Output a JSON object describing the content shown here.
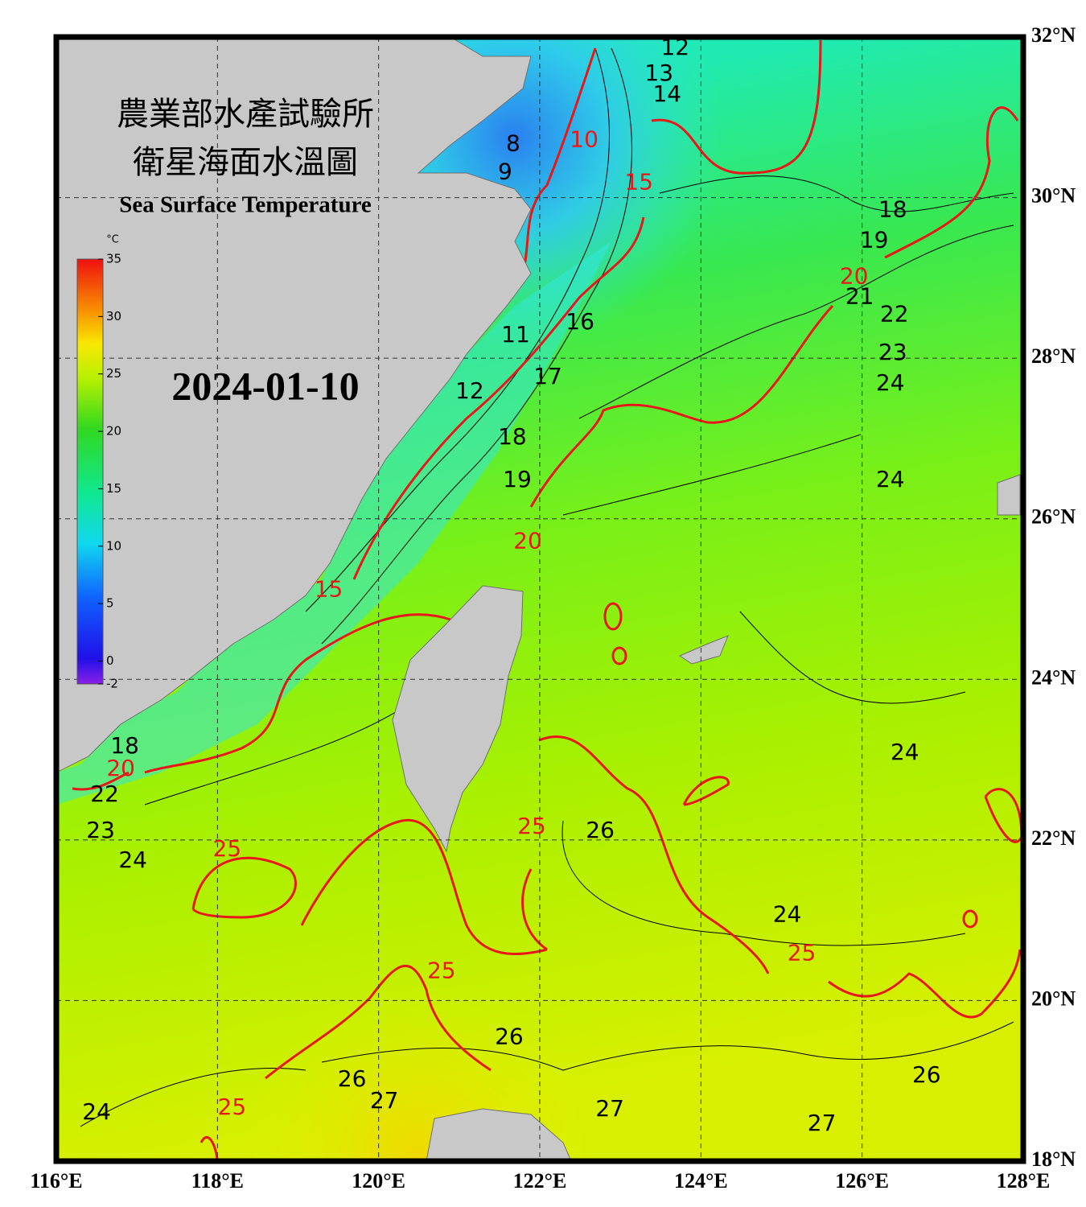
{
  "header": {
    "title_line_1": "農業部水產試驗所",
    "title_line_2": "衛星海面水溫圖",
    "subtitle": "Sea Surface Temperature",
    "date": "2024-01-10"
  },
  "map": {
    "lonlim": [
      116,
      128
    ],
    "latlim": [
      18,
      32
    ],
    "grid": true,
    "lon_ticks": [
      {
        "value": 116,
        "label": "116°E"
      },
      {
        "value": 118,
        "label": "118°E"
      },
      {
        "value": 120,
        "label": "120°E"
      },
      {
        "value": 122,
        "label": "122°E"
      },
      {
        "value": 124,
        "label": "124°E"
      },
      {
        "value": 126,
        "label": "126°E"
      },
      {
        "value": 128,
        "label": "128°E"
      }
    ],
    "lat_ticks": [
      {
        "value": 32,
        "label": "32°N"
      },
      {
        "value": 30,
        "label": "30°N"
      },
      {
        "value": 28,
        "label": "28°N"
      },
      {
        "value": 26,
        "label": "26°N"
      },
      {
        "value": 24,
        "label": "24°N"
      },
      {
        "value": 22,
        "label": "22°N"
      },
      {
        "value": 20,
        "label": "20°N"
      },
      {
        "value": 18,
        "label": "18°N"
      }
    ]
  },
  "colorbar": {
    "unit": "°C",
    "range": [
      -2,
      35
    ],
    "ticks": [
      35,
      30,
      25,
      20,
      15,
      10,
      5,
      0,
      -2
    ]
  },
  "contour_labels": [
    {
      "value": 12,
      "lon": 123.68,
      "lat": 31.86
    },
    {
      "value": 13,
      "lon": 123.48,
      "lat": 31.54
    },
    {
      "value": 14,
      "lon": 123.58,
      "lat": 31.28
    },
    {
      "value": 10,
      "lon": 122.55,
      "lat": 30.71
    },
    {
      "value": 8,
      "lon": 121.67,
      "lat": 30.66
    },
    {
      "value": 9,
      "lon": 121.57,
      "lat": 30.31
    },
    {
      "value": 15,
      "lon": 123.23,
      "lat": 30.18
    },
    {
      "value": 18,
      "lon": 126.38,
      "lat": 29.84
    },
    {
      "value": 19,
      "lon": 126.15,
      "lat": 29.46
    },
    {
      "value": 20,
      "lon": 125.9,
      "lat": 29.01
    },
    {
      "value": 21,
      "lon": 125.97,
      "lat": 28.76
    },
    {
      "value": 22,
      "lon": 126.4,
      "lat": 28.54
    },
    {
      "value": 23,
      "lon": 126.38,
      "lat": 28.06
    },
    {
      "value": 24,
      "lon": 126.35,
      "lat": 27.68
    },
    {
      "value": 11,
      "lon": 121.7,
      "lat": 28.28
    },
    {
      "value": 16,
      "lon": 122.5,
      "lat": 28.44
    },
    {
      "value": 17,
      "lon": 122.1,
      "lat": 27.76
    },
    {
      "value": 12,
      "lon": 121.13,
      "lat": 27.58
    },
    {
      "value": 18,
      "lon": 121.66,
      "lat": 27.01
    },
    {
      "value": 19,
      "lon": 121.72,
      "lat": 26.48
    },
    {
      "value": 24,
      "lon": 126.35,
      "lat": 26.48
    },
    {
      "value": 20,
      "lon": 121.85,
      "lat": 25.71
    },
    {
      "value": 15,
      "lon": 119.38,
      "lat": 25.11
    },
    {
      "value": 24,
      "lon": 126.53,
      "lat": 23.08
    },
    {
      "value": 18,
      "lon": 116.85,
      "lat": 23.16
    },
    {
      "value": 20,
      "lon": 116.8,
      "lat": 22.88
    },
    {
      "value": 22,
      "lon": 116.6,
      "lat": 22.56
    },
    {
      "value": 23,
      "lon": 116.55,
      "lat": 22.11
    },
    {
      "value": 24,
      "lon": 116.95,
      "lat": 21.74
    },
    {
      "value": 25,
      "lon": 118.12,
      "lat": 21.88
    },
    {
      "value": 25,
      "lon": 121.9,
      "lat": 22.16
    },
    {
      "value": 26,
      "lon": 122.75,
      "lat": 22.11
    },
    {
      "value": 24,
      "lon": 125.07,
      "lat": 21.06
    },
    {
      "value": 25,
      "lon": 125.25,
      "lat": 20.58
    },
    {
      "value": 25,
      "lon": 120.78,
      "lat": 20.36
    },
    {
      "value": 26,
      "lon": 121.62,
      "lat": 19.54
    },
    {
      "value": 26,
      "lon": 126.8,
      "lat": 19.06
    },
    {
      "value": 26,
      "lon": 119.67,
      "lat": 19.01
    },
    {
      "value": 27,
      "lon": 120.07,
      "lat": 18.74
    },
    {
      "value": 27,
      "lon": 122.87,
      "lat": 18.64
    },
    {
      "value": 27,
      "lon": 125.5,
      "lat": 18.46
    },
    {
      "value": 24,
      "lon": 116.5,
      "lat": 18.6
    },
    {
      "value": 25,
      "lon": 118.18,
      "lat": 18.66
    }
  ]
}
